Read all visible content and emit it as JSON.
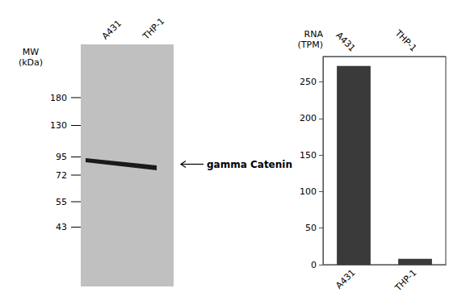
{
  "chart_data": [
    {
      "type": "blot",
      "categories": [
        "A431",
        "THP-1"
      ],
      "ylabel": "MW\n(kDa)",
      "markers": [
        180,
        130,
        95,
        72,
        55,
        43
      ],
      "annotations": [
        "gamma Catenin"
      ],
      "color": "#1a1a1a"
    },
    {
      "type": "bar",
      "categories": [
        "A431",
        "THP-1"
      ],
      "values": [
        272,
        8
      ],
      "color": "#3a3a3a",
      "ylabel": "RNA\n(TPM)",
      "ylim": [
        0,
        285
      ],
      "yticks": [
        0,
        50,
        100,
        150,
        200,
        250
      ],
      "grid": false
    }
  ]
}
